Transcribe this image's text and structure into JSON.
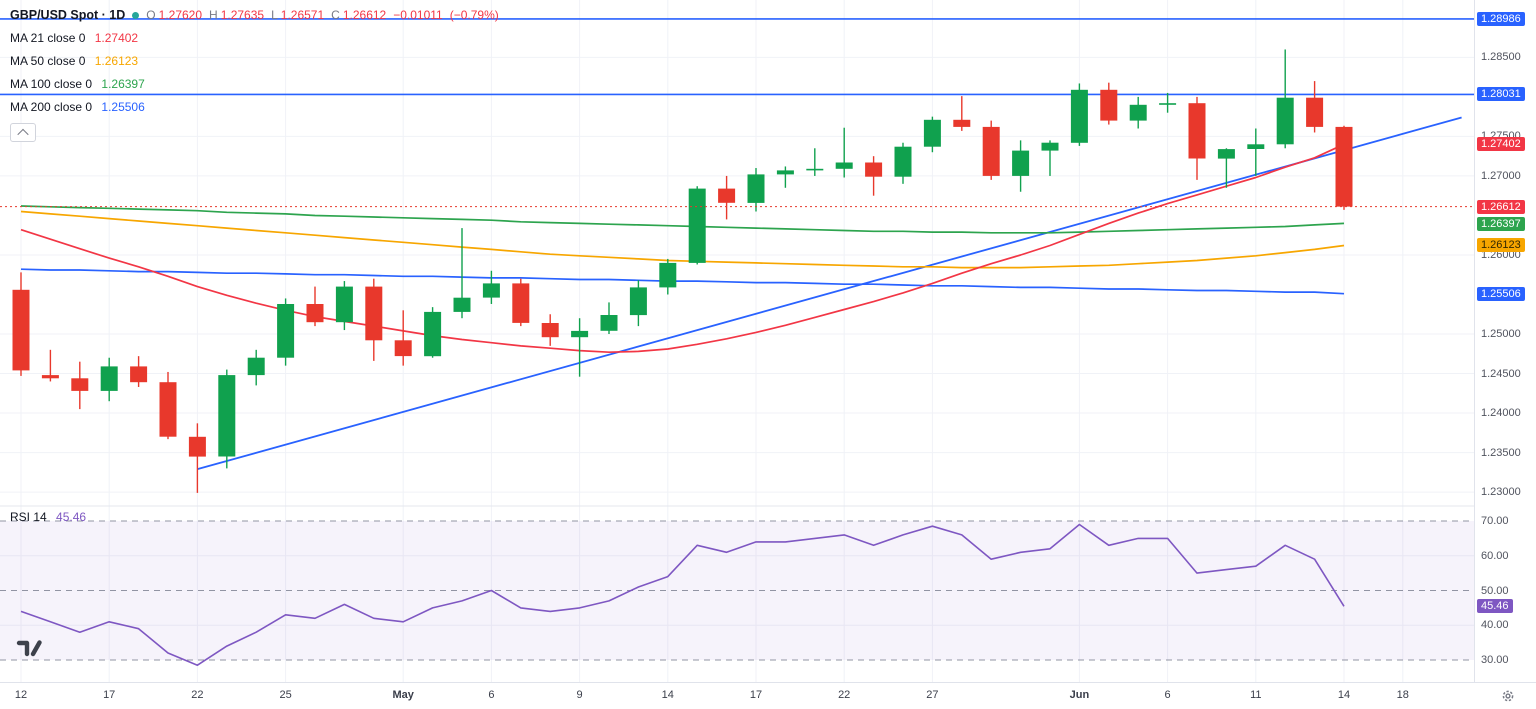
{
  "header": {
    "title": "GBP/USD Spot · 1D",
    "ohlc": {
      "o_label": "O",
      "o": "1.27620",
      "h_label": "H",
      "h": "1.27635",
      "l_label": "L",
      "l": "1.26571",
      "c_label": "C",
      "c": "1.26612",
      "value_color": "#f23645"
    },
    "change": "−0.01011",
    "change_pct": "(−0.79%)",
    "indicators": [
      {
        "label": "MA 21 close 0",
        "value": "1.27402",
        "color": "#f23645"
      },
      {
        "label": "MA 50 close 0",
        "value": "1.26123",
        "color": "#f7a600"
      },
      {
        "label": "MA 100 close 0",
        "value": "1.26397",
        "color": "#2da44e"
      },
      {
        "label": "MA 200 close 0",
        "value": "1.25506",
        "color": "#2962ff"
      }
    ]
  },
  "rsi_legend": {
    "label": "RSI 14",
    "value": "45.46",
    "color": "#7e57c2"
  },
  "price_axis": {
    "ticks": [
      {
        "label": "1.28500",
        "price": 1.285
      },
      {
        "label": "1.27500",
        "price": 1.275
      },
      {
        "label": "1.27000",
        "price": 1.27
      },
      {
        "label": "1.26000",
        "price": 1.26
      },
      {
        "label": "1.25000",
        "price": 1.25
      },
      {
        "label": "1.24500",
        "price": 1.245
      },
      {
        "label": "1.24000",
        "price": 1.24
      },
      {
        "label": "1.23500",
        "price": 1.235
      },
      {
        "label": "1.23000",
        "price": 1.23
      }
    ],
    "badges": [
      {
        "label": "1.28986",
        "price": 1.28986,
        "bg": "#2962ff",
        "fg": "#ffffff",
        "name": "upper-level-badge"
      },
      {
        "label": "1.28031",
        "price": 1.28031,
        "bg": "#2962ff",
        "fg": "#ffffff",
        "name": "resistance-level-badge"
      },
      {
        "label": "1.27402",
        "price": 1.27402,
        "bg": "#f23645",
        "fg": "#ffffff",
        "name": "ma21-value-badge"
      },
      {
        "label": "1.26612",
        "price": 1.26612,
        "bg": "#f23645",
        "fg": "#ffffff",
        "name": "last-price-badge"
      },
      {
        "label": "1.26397",
        "price": 1.26397,
        "bg": "#2da44e",
        "fg": "#ffffff",
        "name": "ma100-value-badge"
      },
      {
        "label": "1.26123",
        "price": 1.26123,
        "bg": "#f7a600",
        "fg": "#332800",
        "name": "ma50-value-badge"
      },
      {
        "label": "1.25506",
        "price": 1.25506,
        "bg": "#2962ff",
        "fg": "#ffffff",
        "name": "ma200-value-badge"
      }
    ]
  },
  "rsi_axis": {
    "ticks": [
      {
        "label": "70.00",
        "value": 70
      },
      {
        "label": "60.00",
        "value": 60
      },
      {
        "label": "50.00",
        "value": 50
      },
      {
        "label": "40.00",
        "value": 40
      },
      {
        "label": "30.00",
        "value": 30
      }
    ],
    "badge": {
      "label": "45.46",
      "value": 45.46
    }
  },
  "time_axis": [
    {
      "label": "12",
      "index": 0
    },
    {
      "label": "17",
      "index": 3
    },
    {
      "label": "22",
      "index": 6
    },
    {
      "label": "25",
      "index": 9
    },
    {
      "label": "May",
      "index": 13,
      "strong": true
    },
    {
      "label": "6",
      "index": 16
    },
    {
      "label": "9",
      "index": 19
    },
    {
      "label": "14",
      "index": 22
    },
    {
      "label": "17",
      "index": 25
    },
    {
      "label": "22",
      "index": 28
    },
    {
      "label": "27",
      "index": 31
    },
    {
      "label": "Jun",
      "index": 36,
      "strong": true
    },
    {
      "label": "6",
      "index": 39
    },
    {
      "label": "11",
      "index": 42
    },
    {
      "label": "14",
      "index": 45
    },
    {
      "label": "18",
      "index": 47
    }
  ],
  "chart_data": {
    "type": "candlestick",
    "title": "GBP/USD Spot",
    "interval": "1D",
    "price_range": [
      1.229,
      1.2915
    ],
    "candles": [
      [
        "Apr 12",
        1.2556,
        1.2578,
        1.2447,
        1.2454
      ],
      [
        "Apr 15",
        1.2448,
        1.248,
        1.244,
        1.2444
      ],
      [
        "Apr 16",
        1.2444,
        1.2465,
        1.2405,
        1.2428
      ],
      [
        "Apr 17",
        1.2428,
        1.247,
        1.2415,
        1.2459
      ],
      [
        "Apr 18",
        1.2459,
        1.2472,
        1.2433,
        1.2439
      ],
      [
        "Apr 19",
        1.2439,
        1.2452,
        1.2367,
        1.237
      ],
      [
        "Apr 22",
        1.237,
        1.2387,
        1.2299,
        1.2345
      ],
      [
        "Apr 23",
        1.2345,
        1.2455,
        1.233,
        1.2448
      ],
      [
        "Apr 24",
        1.2448,
        1.248,
        1.2435,
        1.247
      ],
      [
        "Apr 25",
        1.247,
        1.2545,
        1.246,
        1.2538
      ],
      [
        "Apr 26",
        1.2538,
        1.256,
        1.251,
        1.2515
      ],
      [
        "Apr 29",
        1.2515,
        1.2567,
        1.2505,
        1.256
      ],
      [
        "Apr 30",
        1.256,
        1.257,
        1.2466,
        1.2492
      ],
      [
        "May 1",
        1.2492,
        1.253,
        1.246,
        1.2472
      ],
      [
        "May 2",
        1.2472,
        1.2534,
        1.247,
        1.2528
      ],
      [
        "May 3",
        1.2528,
        1.2634,
        1.252,
        1.2546
      ],
      [
        "May 6",
        1.2546,
        1.258,
        1.2538,
        1.2564
      ],
      [
        "May 7",
        1.2564,
        1.257,
        1.251,
        1.2514
      ],
      [
        "May 8",
        1.2514,
        1.2525,
        1.2485,
        1.2496
      ],
      [
        "May 9",
        1.2496,
        1.252,
        1.2446,
        1.2504
      ],
      [
        "May 10",
        1.2504,
        1.254,
        1.25,
        1.2524
      ],
      [
        "May 13",
        1.2524,
        1.2568,
        1.251,
        1.2559
      ],
      [
        "May 14",
        1.2559,
        1.2595,
        1.255,
        1.259
      ],
      [
        "May 15",
        1.259,
        1.2687,
        1.2588,
        1.2684
      ],
      [
        "May 16",
        1.2684,
        1.27,
        1.2645,
        1.2666
      ],
      [
        "May 17",
        1.2666,
        1.271,
        1.2655,
        1.2702
      ],
      [
        "May 20",
        1.2702,
        1.2712,
        1.2685,
        1.2707
      ],
      [
        "May 21",
        1.2707,
        1.2735,
        1.27,
        1.2709
      ],
      [
        "May 22",
        1.2709,
        1.2761,
        1.2698,
        1.2717
      ],
      [
        "May 23",
        1.2717,
        1.2725,
        1.2675,
        1.2699
      ],
      [
        "May 24",
        1.2699,
        1.2742,
        1.269,
        1.2737
      ],
      [
        "May 27",
        1.2737,
        1.2775,
        1.273,
        1.2771
      ],
      [
        "May 28",
        1.2771,
        1.2801,
        1.2757,
        1.2762
      ],
      [
        "May 29",
        1.2762,
        1.277,
        1.2695,
        1.27
      ],
      [
        "May 30",
        1.27,
        1.2745,
        1.268,
        1.2732
      ],
      [
        "May 31",
        1.2732,
        1.2745,
        1.27,
        1.2742
      ],
      [
        "Jun 3",
        1.2742,
        1.2817,
        1.2738,
        1.2809
      ],
      [
        "Jun 4",
        1.2809,
        1.2818,
        1.2765,
        1.277
      ],
      [
        "Jun 5",
        1.277,
        1.28,
        1.276,
        1.279
      ],
      [
        "Jun 6",
        1.279,
        1.2805,
        1.278,
        1.2792
      ],
      [
        "Jun 7",
        1.2792,
        1.28,
        1.2695,
        1.2722
      ],
      [
        "Jun 10",
        1.2722,
        1.2735,
        1.2685,
        1.2734
      ],
      [
        "Jun 11",
        1.2734,
        1.276,
        1.27,
        1.274
      ],
      [
        "Jun 12",
        1.274,
        1.286,
        1.2735,
        1.2799
      ],
      [
        "Jun 13",
        1.2799,
        1.282,
        1.2755,
        1.2762
      ],
      [
        "Jun 14",
        1.2762,
        1.27635,
        1.26571,
        1.26612
      ]
    ],
    "overlays": {
      "ma21": [
        1.2632,
        1.262,
        1.2608,
        1.2596,
        1.2585,
        1.2573,
        1.256,
        1.2549,
        1.2539,
        1.253,
        1.2522,
        1.2516,
        1.251,
        1.2504,
        1.2498,
        1.2493,
        1.2489,
        1.2485,
        1.2482,
        1.2479,
        1.2477,
        1.2478,
        1.2481,
        1.2487,
        1.2494,
        1.2502,
        1.2511,
        1.2521,
        1.2531,
        1.2541,
        1.2552,
        1.2564,
        1.2577,
        1.2589,
        1.26,
        1.2612,
        1.2626,
        1.264,
        1.2653,
        1.2665,
        1.2676,
        1.2687,
        1.2698,
        1.2711,
        1.2723,
        1.274
      ],
      "ma50": [
        1.2655,
        1.2652,
        1.2649,
        1.2646,
        1.2643,
        1.264,
        1.2637,
        1.2634,
        1.2631,
        1.2628,
        1.2625,
        1.2622,
        1.2619,
        1.2616,
        1.2613,
        1.261,
        1.2607,
        1.2604,
        1.2601,
        1.2599,
        1.2597,
        1.2595,
        1.2593,
        1.2592,
        1.2591,
        1.259,
        1.2589,
        1.2588,
        1.2587,
        1.2586,
        1.2585,
        1.2585,
        1.2584,
        1.2584,
        1.2584,
        1.2585,
        1.2586,
        1.2587,
        1.2589,
        1.2591,
        1.2593,
        1.2596,
        1.2599,
        1.2603,
        1.2607,
        1.2612
      ],
      "ma100": [
        1.2662,
        1.2661,
        1.266,
        1.2659,
        1.2658,
        1.2657,
        1.2656,
        1.2654,
        1.2653,
        1.2652,
        1.265,
        1.2649,
        1.2648,
        1.2647,
        1.2646,
        1.2645,
        1.2644,
        1.2642,
        1.2641,
        1.264,
        1.2639,
        1.2638,
        1.2637,
        1.2636,
        1.2635,
        1.2634,
        1.2633,
        1.2632,
        1.2631,
        1.263,
        1.263,
        1.2629,
        1.2629,
        1.2628,
        1.2628,
        1.2628,
        1.2629,
        1.263,
        1.2631,
        1.2632,
        1.2633,
        1.2634,
        1.2635,
        1.2636,
        1.2638,
        1.264
      ],
      "ma200": [
        1.2582,
        1.2581,
        1.2581,
        1.258,
        1.2579,
        1.2579,
        1.2578,
        1.2577,
        1.2577,
        1.2576,
        1.2575,
        1.2575,
        1.2574,
        1.2573,
        1.2573,
        1.2572,
        1.2571,
        1.2571,
        1.257,
        1.2569,
        1.2569,
        1.2568,
        1.2567,
        1.2567,
        1.2566,
        1.2565,
        1.2565,
        1.2564,
        1.2563,
        1.2563,
        1.2562,
        1.2561,
        1.2561,
        1.256,
        1.2559,
        1.2559,
        1.2558,
        1.2557,
        1.2557,
        1.2556,
        1.2555,
        1.2555,
        1.2554,
        1.2553,
        1.2553,
        1.2551
      ]
    },
    "trendline": {
      "from_index": 6,
      "from_price": 1.2329,
      "to_index": 49,
      "to_price": 1.2774
    },
    "levels": [
      1.28986,
      1.28031
    ],
    "last_price": 1.26612,
    "rsi": {
      "period": 14,
      "levels": [
        70,
        50,
        30
      ],
      "values": [
        44,
        41,
        38,
        41,
        39,
        32,
        28.5,
        34,
        38,
        43,
        42,
        46,
        42,
        41,
        45,
        47,
        50,
        45,
        44,
        45,
        47,
        51,
        54,
        63,
        61,
        64,
        64,
        65,
        66,
        63,
        66,
        68.5,
        66,
        59,
        61,
        62,
        69,
        63,
        65,
        65,
        55,
        56,
        57,
        63,
        59,
        45.46
      ]
    },
    "colors": {
      "up": "#10a14e",
      "down": "#e8382c",
      "ma21": "#f23645",
      "ma50": "#f7a600",
      "ma100": "#2da44e",
      "ma200": "#2962ff",
      "trendline": "#2962ff",
      "level": "#2962ff",
      "last_price": "#e8382c",
      "rsi": "#7e57c2",
      "grid": "#f0f2f7",
      "rsi_dash": "#9194a3"
    }
  }
}
